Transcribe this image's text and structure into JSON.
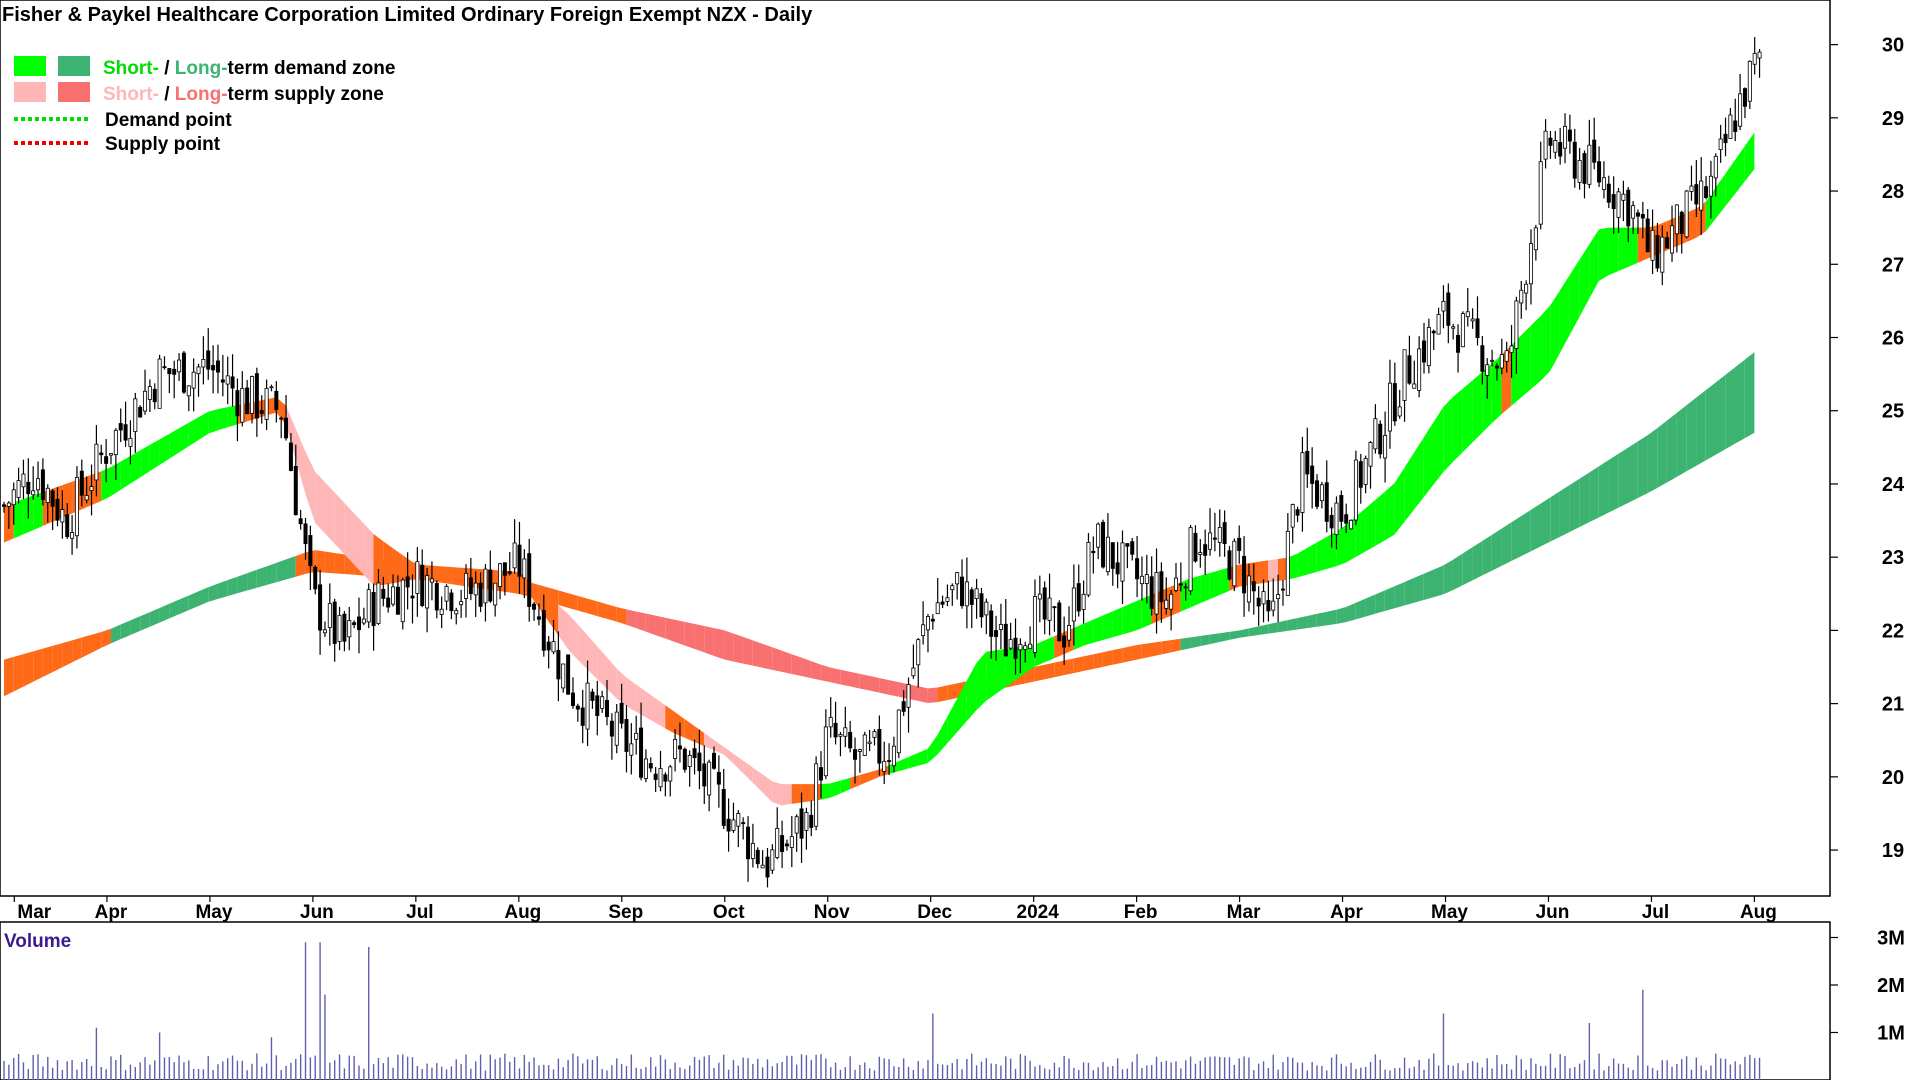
{
  "chart_data": {
    "type": "candlestick",
    "title": "Fisher & Paykel Healthcare Corporation Limited Ordinary Foreign Exempt NZX - Daily",
    "legend": {
      "placement": "top-left",
      "items": [
        {
          "swatches": [
            "#00ff00",
            "#3cb371"
          ],
          "short": "Short-",
          "sep": " / ",
          "long": "Long-",
          "rest": "term demand zone"
        },
        {
          "swatches": [
            "#ffb6b6",
            "#f87070"
          ],
          "short": "Short-",
          "sep": " / ",
          "long": "Long-",
          "rest": "term supply zone"
        },
        {
          "line_color": "#00dd00",
          "label": "Demand point"
        },
        {
          "line_color": "#ee0000",
          "label": "Supply point"
        }
      ]
    },
    "price_axis": {
      "side": "right",
      "range": [
        18.4,
        30.5
      ],
      "ticks": [
        "19",
        "20",
        "21",
        "22",
        "23",
        "24",
        "25",
        "26",
        "27",
        "28",
        "29",
        "30"
      ]
    },
    "month_axis": {
      "labels": [
        "Mar",
        "Apr",
        "May",
        "Jun",
        "Jul",
        "Aug",
        "Sep",
        "Oct",
        "Nov",
        "Dec",
        "2024",
        "Feb",
        "Mar",
        "Apr",
        "May",
        "Jun",
        "Jul",
        "Aug"
      ],
      "positions": [
        0.1,
        1,
        2,
        3,
        4,
        5,
        6,
        7,
        8,
        9,
        10,
        11,
        12,
        13,
        14,
        15,
        16,
        17
      ]
    },
    "month_range": [
      0,
      17.2
    ],
    "price_waypoints": {
      "t": [
        0,
        0.3,
        0.6,
        1.0,
        1.5,
        2.0,
        2.3,
        2.7,
        3.0,
        3.3,
        3.6,
        4.0,
        4.5,
        5.0,
        5.5,
        6.0,
        6.3,
        6.6,
        7.0,
        7.4,
        7.8,
        8.0,
        8.3,
        8.6,
        9.0,
        9.3,
        9.7,
        10.0,
        10.3,
        10.6,
        11.0,
        11.3,
        11.6,
        12.0,
        12.3,
        12.6,
        13.0,
        13.3,
        13.6,
        14.0,
        14.3,
        14.6,
        15.0,
        15.2,
        15.5,
        15.8,
        16.0,
        16.3,
        16.6,
        16.8,
        17.0
      ],
      "close": [
        23.7,
        24.2,
        23.5,
        24.5,
        25.5,
        25.6,
        25.2,
        25.0,
        22.4,
        21.8,
        22.4,
        22.7,
        22.5,
        22.9,
        21.2,
        20.5,
        20.2,
        20.3,
        19.6,
        18.8,
        19.4,
        20.6,
        20.2,
        20.4,
        22.3,
        22.6,
        21.8,
        22.2,
        22.0,
        23.2,
        22.7,
        22.4,
        23.3,
        22.9,
        22.0,
        24.1,
        23.6,
        24.5,
        25.5,
        26.3,
        25.9,
        25.6,
        28.7,
        28.5,
        28.2,
        27.8,
        27.1,
        27.6,
        28.1,
        29.0,
        29.7
      ]
    },
    "zones": {
      "short_term_upper": {
        "t": [
          0,
          1,
          2,
          2.7,
          3,
          3.6,
          4,
          5,
          5.5,
          6,
          6.5,
          7,
          7.5,
          8,
          8.5,
          9,
          9.5,
          10,
          10.5,
          11,
          11.5,
          12,
          12.5,
          13,
          13.5,
          14,
          14.5,
          15,
          15.5,
          16,
          16.5,
          17
        ],
        "v": [
          23.7,
          24.2,
          25.0,
          25.2,
          24.2,
          23.3,
          22.9,
          22.8,
          22.2,
          21.4,
          20.9,
          20.4,
          19.9,
          19.9,
          20.1,
          20.4,
          21.7,
          21.8,
          22.1,
          22.4,
          22.7,
          22.9,
          23.0,
          23.4,
          24.0,
          25.1,
          25.7,
          26.4,
          27.5,
          27.5,
          27.8,
          28.8
        ]
      },
      "short_term_lower": {
        "t": [
          0,
          1,
          2,
          2.7,
          3,
          3.6,
          4,
          5,
          5.5,
          6,
          6.5,
          7,
          7.5,
          8,
          8.5,
          9,
          9.5,
          10,
          10.5,
          11,
          11.5,
          12,
          12.5,
          13,
          13.5,
          14,
          14.5,
          15,
          15.5,
          16,
          16.5,
          17
        ],
        "v": [
          23.2,
          23.8,
          24.7,
          25.0,
          23.5,
          22.6,
          22.7,
          22.7,
          21.7,
          21.0,
          20.6,
          20.3,
          19.6,
          19.7,
          20.0,
          20.2,
          21.0,
          21.5,
          21.8,
          22.0,
          22.3,
          22.6,
          22.7,
          22.9,
          23.3,
          24.2,
          24.9,
          25.5,
          26.8,
          27.1,
          27.4,
          28.3
        ]
      },
      "long_term_upper": {
        "t": [
          0,
          1,
          2,
          3,
          4,
          5,
          6,
          7,
          8,
          9,
          10,
          11,
          12,
          13,
          14,
          15,
          16,
          17
        ],
        "v": [
          21.6,
          22.0,
          22.6,
          23.1,
          22.9,
          22.7,
          22.3,
          22.0,
          21.5,
          21.2,
          21.5,
          21.8,
          22.0,
          22.3,
          22.9,
          23.8,
          24.7,
          25.8
        ]
      },
      "long_term_lower": {
        "t": [
          0,
          1,
          2,
          3,
          4,
          5,
          6,
          7,
          8,
          9,
          10,
          11,
          12,
          13,
          14,
          15,
          16,
          17
        ],
        "v": [
          21.1,
          21.8,
          22.4,
          22.8,
          22.7,
          22.5,
          22.1,
          21.6,
          21.3,
          21.0,
          21.3,
          21.6,
          21.9,
          22.1,
          22.5,
          23.2,
          23.9,
          24.7
        ]
      },
      "demand_color_short": "#00ff00",
      "demand_color_long": "#3cb371",
      "supply_color_short": "#ffb6b6",
      "supply_color_long": "#f87070",
      "transition_color": "#ff6a18"
    },
    "volume": {
      "label": "Volume",
      "ticks": [
        "1M",
        "2M",
        "3M"
      ],
      "range_millions": [
        0,
        3.2
      ],
      "typical_millions": 0.4,
      "spikes_millions": [
        {
          "t": 0.9,
          "v": 1.1
        },
        {
          "t": 1.5,
          "v": 1.0
        },
        {
          "t": 2.6,
          "v": 0.9
        },
        {
          "t": 2.95,
          "v": 2.9
        },
        {
          "t": 3.05,
          "v": 2.9
        },
        {
          "t": 3.1,
          "v": 1.8
        },
        {
          "t": 3.55,
          "v": 2.8
        },
        {
          "t": 9.0,
          "v": 1.4
        },
        {
          "t": 14.0,
          "v": 1.4
        },
        {
          "t": 15.4,
          "v": 1.2
        },
        {
          "t": 15.9,
          "v": 1.9
        }
      ],
      "bar_color": "#5f5fae"
    },
    "bar_color": "#000000"
  }
}
